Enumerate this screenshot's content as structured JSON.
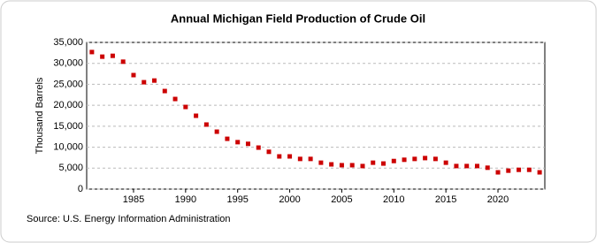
{
  "chart_data": {
    "type": "scatter",
    "title": "Annual Michigan Field Production of Crude Oil",
    "y_label": "Thousand Barrels",
    "source": "Source: U.S. Energy Information Administration",
    "color": "#cc0000",
    "x": [
      1981,
      1982,
      1983,
      1984,
      1985,
      1986,
      1987,
      1988,
      1989,
      1990,
      1991,
      1992,
      1993,
      1994,
      1995,
      1996,
      1997,
      1998,
      1999,
      2000,
      2001,
      2002,
      2003,
      2004,
      2005,
      2006,
      2007,
      2008,
      2009,
      2010,
      2011,
      2012,
      2013,
      2014,
      2015,
      2016,
      2017,
      2018,
      2019,
      2020,
      2021,
      2022,
      2023,
      2024
    ],
    "values": [
      32700,
      31600,
      31800,
      30400,
      27200,
      25500,
      25900,
      23400,
      21500,
      19600,
      17500,
      15400,
      13700,
      12000,
      11200,
      10800,
      9900,
      8900,
      7800,
      7800,
      7200,
      7200,
      6300,
      5900,
      5700,
      5700,
      5500,
      6300,
      6100,
      6700,
      7000,
      7200,
      7400,
      7200,
      6300,
      5500,
      5500,
      5500,
      5100,
      4000,
      4400,
      4600,
      4600,
      4000
    ],
    "xlim": [
      1980.5,
      2024.5
    ],
    "xticks": [
      1985,
      1990,
      1995,
      2000,
      2005,
      2010,
      2015,
      2020
    ],
    "ylim": [
      0,
      35000
    ],
    "yticks": [
      0,
      {
        "value": 5000,
        "label": "5,000"
      },
      {
        "value": 10000,
        "label": "10,000"
      },
      {
        "value": 15000,
        "label": "15,000"
      },
      {
        "value": 20000,
        "label": "20,000"
      },
      {
        "value": 25000,
        "label": "25,000"
      },
      {
        "value": 30000,
        "label": "30,000"
      },
      {
        "value": 35000,
        "label": "35,000"
      }
    ],
    "grid": true
  }
}
